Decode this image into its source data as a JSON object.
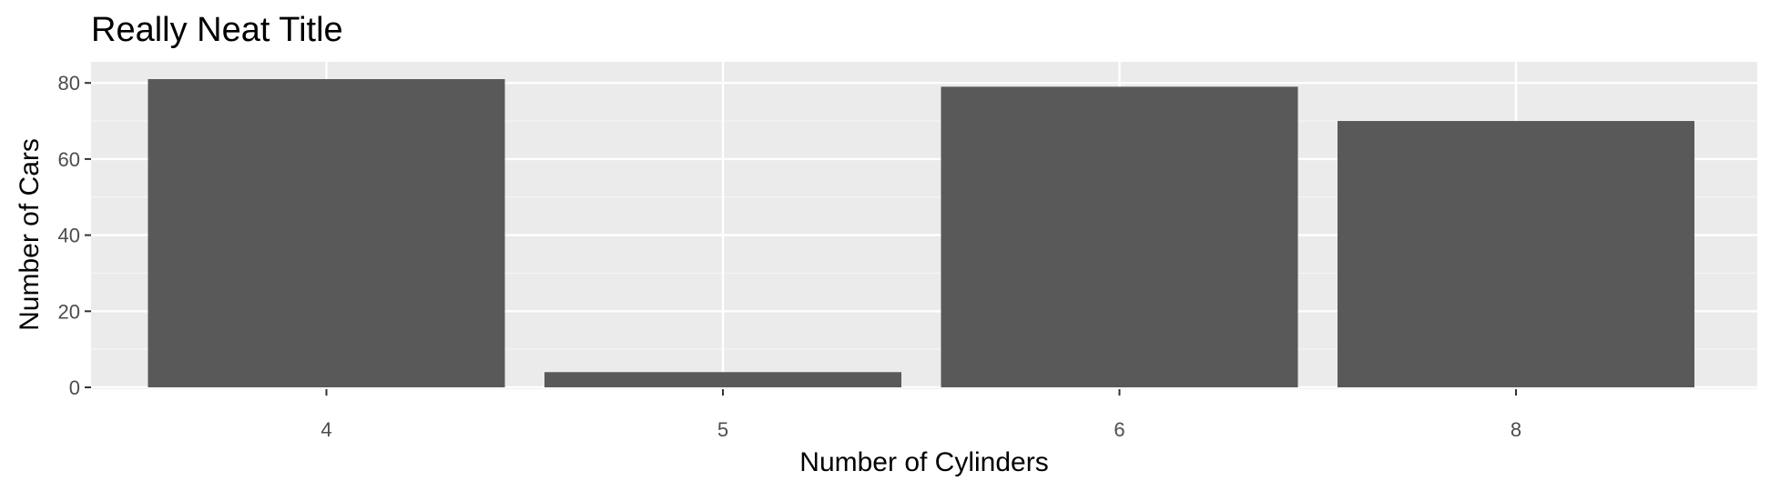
{
  "chart_data": {
    "type": "bar",
    "title": "Really Neat Title",
    "xlabel": "Number of Cylinders",
    "ylabel": "Number of Cars",
    "categories": [
      "4",
      "5",
      "6",
      "8"
    ],
    "values": [
      81,
      4,
      79,
      70
    ],
    "ylim": [
      0,
      85
    ],
    "yticks": [
      0,
      20,
      40,
      60,
      80
    ],
    "grid": true,
    "colors": {
      "bar": "#595959",
      "panel": "#ebebeb",
      "grid_major": "#ffffff",
      "grid_minor": "#f5f5f5",
      "tick": "#333333",
      "tick_label": "#4d4d4d"
    }
  }
}
